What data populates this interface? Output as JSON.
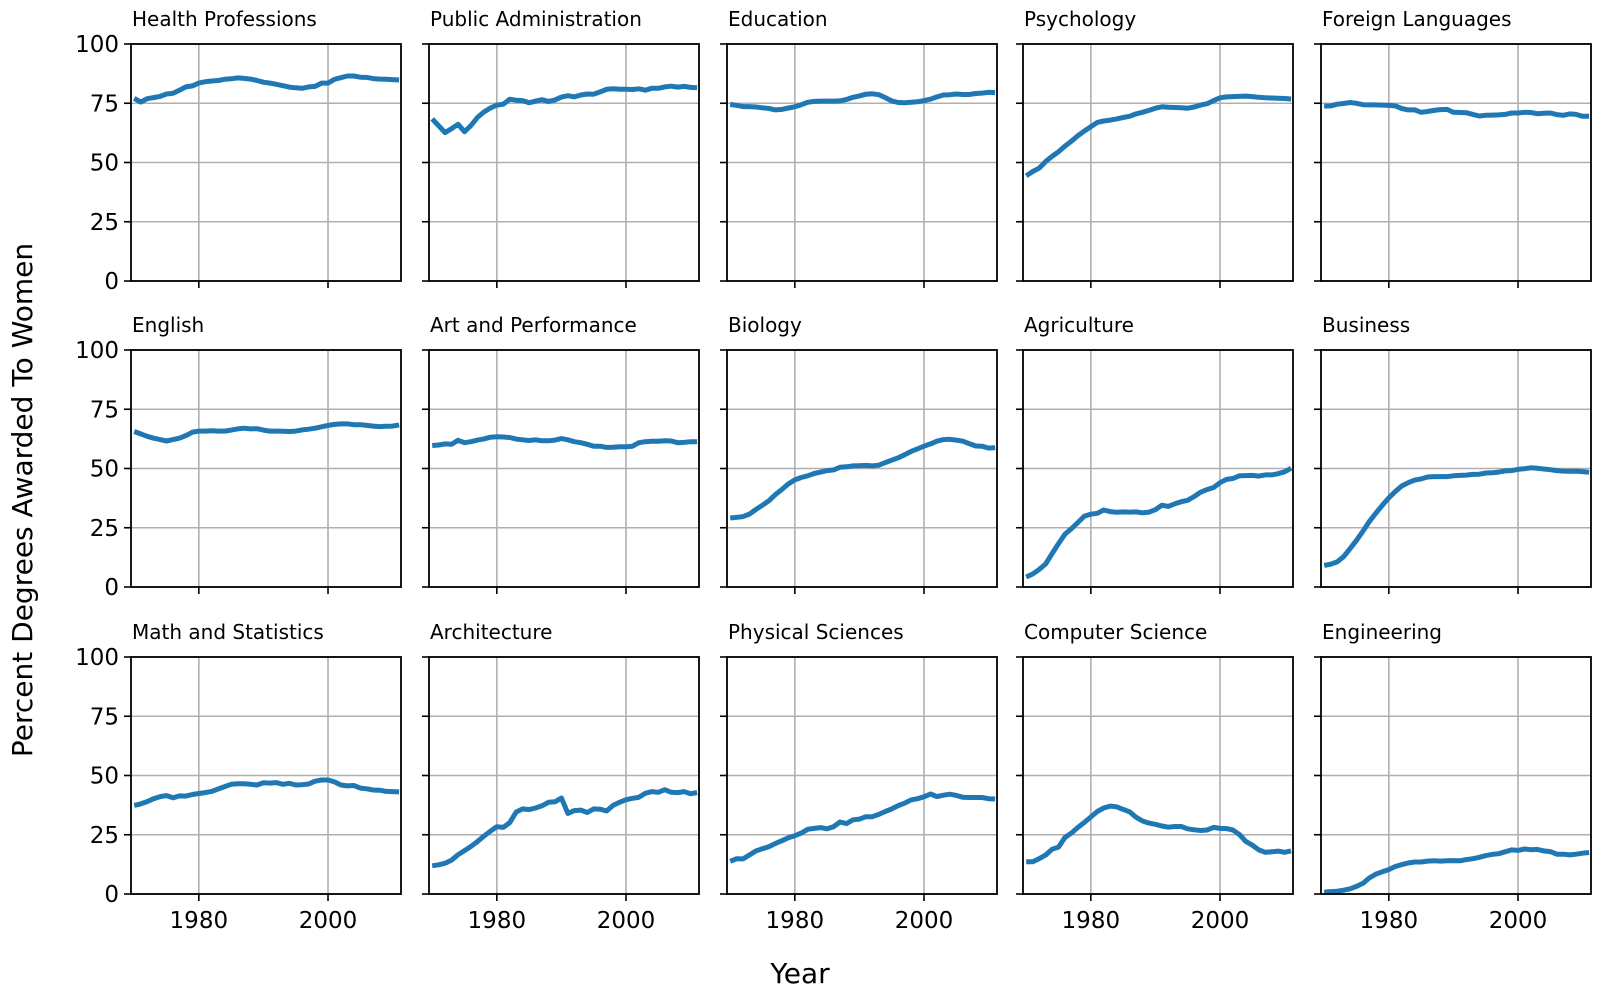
{
  "chart_data": {
    "type": "line",
    "layout": "small-multiples 3x5",
    "xlabel": "Year",
    "ylabel": "Percent Degrees Awarded To Women",
    "xlim": [
      1969.5,
      2011.3
    ],
    "ylim": [
      0,
      100
    ],
    "xticks": [
      1980,
      2000
    ],
    "yticks": [
      0,
      25,
      50,
      75,
      100
    ],
    "grid": true,
    "line_color": "#1f77b4",
    "years": [
      1970,
      1971,
      1972,
      1973,
      1974,
      1975,
      1976,
      1977,
      1978,
      1979,
      1980,
      1981,
      1982,
      1983,
      1984,
      1985,
      1986,
      1987,
      1988,
      1989,
      1990,
      1991,
      1992,
      1993,
      1994,
      1995,
      1996,
      1997,
      1998,
      1999,
      2000,
      2001,
      2002,
      2003,
      2004,
      2005,
      2006,
      2007,
      2008,
      2009,
      2010,
      2011
    ],
    "series": [
      {
        "name": "Health Professions",
        "values": [
          77.1,
          75.5,
          76.9,
          77.4,
          77.9,
          78.9,
          79.2,
          80.5,
          81.9,
          82.3,
          83.5,
          84.1,
          84.4,
          84.6,
          85.1,
          85.3,
          85.7,
          85.5,
          85.2,
          84.6,
          83.9,
          83.5,
          83.0,
          82.4,
          81.8,
          81.5,
          81.3,
          81.9,
          82.1,
          83.5,
          83.5,
          85.1,
          85.8,
          86.5,
          86.5,
          86.0,
          85.9,
          85.4,
          85.2,
          85.1,
          85.0,
          84.8
        ]
      },
      {
        "name": "Public Administration",
        "values": [
          68.4,
          65.5,
          62.6,
          64.3,
          66.1,
          63.0,
          65.6,
          69.0,
          71.3,
          73.0,
          74.2,
          74.6,
          76.7,
          76.3,
          76.1,
          75.2,
          75.9,
          76.5,
          75.8,
          76.4,
          77.6,
          78.2,
          77.7,
          78.5,
          78.9,
          78.8,
          79.8,
          80.9,
          81.1,
          80.9,
          80.9,
          80.8,
          81.1,
          80.5,
          81.3,
          81.3,
          81.9,
          82.2,
          81.8,
          82.1,
          81.7,
          81.5
        ]
      },
      {
        "name": "Education",
        "values": [
          74.5,
          74.1,
          73.6,
          73.6,
          73.4,
          73.1,
          72.8,
          72.2,
          72.4,
          73.0,
          73.5,
          74.4,
          75.4,
          75.8,
          75.9,
          75.9,
          75.9,
          76.0,
          76.6,
          77.5,
          78.1,
          78.8,
          79.0,
          78.6,
          77.4,
          76.0,
          75.3,
          75.2,
          75.4,
          75.6,
          76.1,
          76.7,
          77.7,
          78.5,
          78.6,
          78.9,
          78.7,
          78.7,
          79.1,
          79.3,
          79.6,
          79.5
        ]
      },
      {
        "name": "Psychology",
        "values": [
          44.4,
          46.2,
          47.6,
          50.4,
          52.6,
          54.5,
          56.9,
          59.0,
          61.3,
          63.3,
          65.1,
          66.9,
          67.5,
          67.9,
          68.4,
          69.0,
          69.5,
          70.5,
          71.2,
          72.0,
          72.9,
          73.5,
          73.3,
          73.2,
          73.1,
          72.9,
          73.4,
          74.2,
          74.8,
          76.1,
          77.3,
          77.7,
          77.8,
          77.9,
          78.0,
          77.8,
          77.5,
          77.3,
          77.2,
          77.1,
          77.0,
          76.8
        ]
      },
      {
        "name": "Foreign Languages",
        "values": [
          73.8,
          73.9,
          74.6,
          74.9,
          75.3,
          75.0,
          74.4,
          74.3,
          74.3,
          74.2,
          74.1,
          73.9,
          72.8,
          72.2,
          72.2,
          71.2,
          71.5,
          72.0,
          72.3,
          72.4,
          71.2,
          71.1,
          71.0,
          70.3,
          69.6,
          69.9,
          70.0,
          70.1,
          70.3,
          70.9,
          70.9,
          71.2,
          71.1,
          70.6,
          70.8,
          70.9,
          70.2,
          69.9,
          70.5,
          70.3,
          69.5,
          69.5
        ]
      },
      {
        "name": "English",
        "values": [
          65.6,
          64.6,
          63.6,
          62.8,
          62.2,
          61.6,
          62.2,
          62.8,
          63.9,
          65.3,
          65.8,
          65.8,
          65.9,
          65.8,
          65.8,
          66.2,
          66.7,
          67.0,
          66.7,
          66.8,
          66.2,
          65.8,
          65.8,
          65.7,
          65.6,
          65.8,
          66.3,
          66.6,
          67.0,
          67.6,
          68.2,
          68.6,
          68.8,
          68.8,
          68.5,
          68.5,
          68.2,
          67.9,
          67.7,
          67.8,
          67.9,
          68.4
        ]
      },
      {
        "name": "Art and Performance",
        "values": [
          59.7,
          59.9,
          60.4,
          60.2,
          61.9,
          60.9,
          61.3,
          62.0,
          62.5,
          63.2,
          63.4,
          63.3,
          63.1,
          62.4,
          62.1,
          61.8,
          62.1,
          61.7,
          61.7,
          62.0,
          62.6,
          62.1,
          61.3,
          60.9,
          60.2,
          59.4,
          59.4,
          58.9,
          59.0,
          59.2,
          59.2,
          59.4,
          60.9,
          61.3,
          61.5,
          61.5,
          61.7,
          61.6,
          60.9,
          61.0,
          61.3,
          61.3
        ]
      },
      {
        "name": "Biology",
        "values": [
          29.1,
          29.4,
          29.7,
          30.8,
          32.8,
          34.5,
          36.4,
          39.0,
          41.2,
          43.5,
          45.2,
          46.2,
          46.9,
          47.9,
          48.5,
          49.1,
          49.4,
          50.5,
          50.7,
          51.1,
          51.2,
          51.3,
          51.1,
          51.4,
          52.5,
          53.5,
          54.5,
          55.8,
          57.2,
          58.3,
          59.4,
          60.4,
          61.5,
          62.2,
          62.3,
          62.0,
          61.5,
          60.5,
          59.5,
          59.4,
          58.6,
          58.8
        ]
      },
      {
        "name": "Agriculture",
        "values": [
          4.2,
          5.5,
          7.4,
          9.7,
          14.1,
          18.3,
          22.3,
          24.6,
          27.2,
          29.9,
          30.7,
          31.1,
          32.5,
          31.8,
          31.5,
          31.7,
          31.6,
          31.7,
          31.3,
          31.6,
          32.6,
          34.5,
          34.0,
          35.1,
          36.0,
          36.6,
          38.2,
          40.0,
          41.1,
          42.0,
          44.0,
          45.4,
          45.8,
          46.9,
          47.0,
          47.1,
          46.8,
          47.3,
          47.3,
          47.8,
          48.6,
          50.1
        ]
      },
      {
        "name": "Business",
        "values": [
          9.1,
          9.6,
          10.6,
          12.8,
          16.2,
          19.7,
          23.6,
          27.7,
          31.2,
          34.5,
          37.6,
          40.3,
          42.6,
          44.0,
          45.1,
          45.6,
          46.4,
          46.6,
          46.6,
          46.6,
          46.9,
          47.1,
          47.2,
          47.5,
          47.6,
          48.1,
          48.2,
          48.5,
          49.0,
          49.1,
          49.6,
          49.9,
          50.3,
          50.1,
          49.8,
          49.5,
          49.1,
          48.9,
          48.8,
          48.9,
          48.7,
          48.4
        ]
      },
      {
        "name": "Math and Statistics",
        "values": [
          37.4,
          38.0,
          39.0,
          40.2,
          41.1,
          41.5,
          40.6,
          41.4,
          41.3,
          42.0,
          42.4,
          42.8,
          43.3,
          44.3,
          45.3,
          46.3,
          46.5,
          46.5,
          46.3,
          46.0,
          46.9,
          46.8,
          47.0,
          46.3,
          46.7,
          46.0,
          46.1,
          46.4,
          47.6,
          48.1,
          48.1,
          47.3,
          46.0,
          45.6,
          45.8,
          44.7,
          44.4,
          43.9,
          43.8,
          43.3,
          43.2,
          43.1
        ]
      },
      {
        "name": "Architecture",
        "values": [
          11.9,
          12.3,
          13.0,
          14.3,
          16.6,
          18.3,
          20.1,
          22.1,
          24.4,
          26.5,
          28.4,
          28.1,
          30.1,
          34.6,
          35.9,
          35.6,
          36.3,
          37.2,
          38.7,
          38.9,
          40.5,
          34.0,
          35.2,
          35.4,
          34.4,
          35.9,
          35.8,
          35.0,
          37.4,
          38.7,
          39.8,
          40.4,
          40.8,
          42.5,
          43.2,
          42.9,
          44.0,
          42.9,
          42.8,
          43.2,
          42.3,
          42.8
        ]
      },
      {
        "name": "Physical Sciences",
        "values": [
          13.8,
          14.9,
          14.8,
          16.5,
          18.2,
          19.1,
          20.0,
          21.3,
          22.5,
          23.7,
          24.6,
          25.7,
          27.3,
          27.7,
          28.0,
          27.5,
          28.4,
          30.4,
          29.7,
          31.3,
          31.6,
          32.6,
          32.6,
          33.6,
          34.8,
          35.9,
          37.3,
          38.3,
          39.7,
          40.2,
          41.0,
          42.2,
          41.1,
          41.7,
          42.1,
          41.6,
          40.8,
          40.7,
          40.7,
          40.7,
          40.2,
          40.1
        ]
      },
      {
        "name": "Computer Science",
        "values": [
          13.6,
          13.6,
          14.9,
          16.4,
          18.9,
          19.8,
          23.9,
          25.7,
          28.1,
          30.2,
          32.5,
          34.8,
          36.3,
          37.1,
          36.8,
          35.7,
          34.7,
          32.4,
          30.8,
          29.9,
          29.4,
          28.7,
          28.2,
          28.5,
          28.5,
          27.5,
          27.1,
          26.8,
          27.0,
          28.1,
          27.7,
          27.6,
          27.0,
          25.1,
          22.2,
          20.6,
          18.6,
          17.6,
          17.8,
          18.1,
          17.6,
          18.2
        ]
      },
      {
        "name": "Engineering",
        "values": [
          0.8,
          1.0,
          1.2,
          1.6,
          2.2,
          3.2,
          4.5,
          6.8,
          8.4,
          9.4,
          10.3,
          11.6,
          12.4,
          13.1,
          13.5,
          13.5,
          13.9,
          14.0,
          13.9,
          14.0,
          14.1,
          14.0,
          14.5,
          14.9,
          15.5,
          16.2,
          16.7,
          17.0,
          17.8,
          18.6,
          18.4,
          19.0,
          18.7,
          18.8,
          18.2,
          17.9,
          16.8,
          16.8,
          16.5,
          16.8,
          17.2,
          17.5
        ]
      }
    ]
  }
}
